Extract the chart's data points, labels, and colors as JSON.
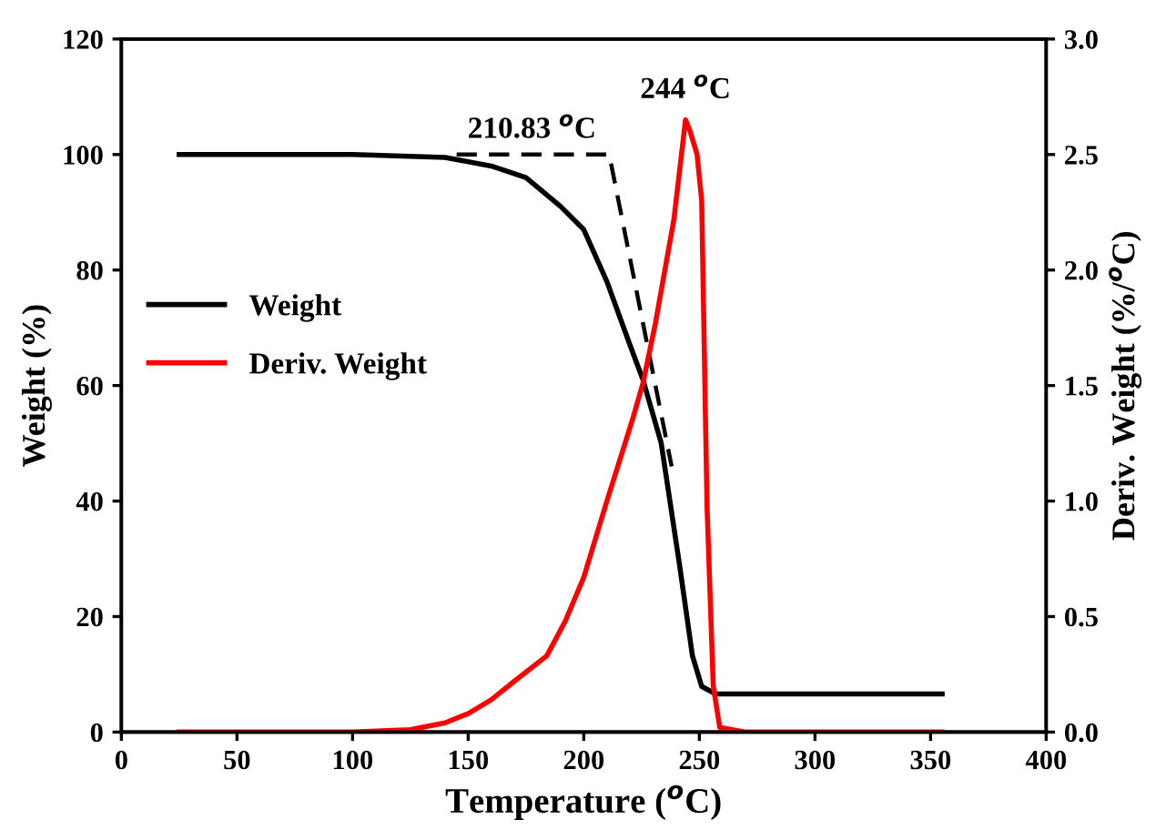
{
  "chart_data": {
    "type": "line",
    "xlabel": "Temperature ($^{o}$C)",
    "ylabel": "Weight (%)",
    "y2label": "Deriv. Weight (%/$^{o}$C)",
    "xlim": [
      0,
      400
    ],
    "xticks": [
      0,
      50,
      100,
      150,
      200,
      250,
      300,
      350,
      400
    ],
    "ylim": [
      0,
      120
    ],
    "yticks": [
      0,
      20,
      40,
      60,
      80,
      100,
      120
    ],
    "y2lim": [
      0,
      3.0
    ],
    "y2ticks": [
      {
        "value": 0,
        "label": "0.0"
      },
      {
        "value": 0.5,
        "label": "0.5"
      },
      {
        "value": 1,
        "label": "1.0"
      },
      {
        "value": 1.5,
        "label": "1.5"
      },
      {
        "value": 2,
        "label": "2.0"
      },
      {
        "value": 2.5,
        "label": "2.5"
      },
      {
        "value": 3,
        "label": "3.0"
      }
    ],
    "grid": false,
    "legend": "center left",
    "marker": "none",
    "series": [
      {
        "name": "Weight",
        "color": "#000000",
        "line_style": "solid",
        "x": [
          25,
          100,
          140,
          160,
          175,
          190,
          200,
          210,
          220,
          225.6,
          233.5,
          241.4,
          247,
          251,
          257,
          300,
          355
        ],
        "values": [
          100,
          100,
          99.5,
          98,
          96,
          91,
          87,
          78,
          67,
          61,
          50,
          29,
          13.2,
          7.9,
          6.6,
          6.6,
          6.6
        ]
      },
      {
        "name": "Deriv. Weight",
        "color": "#ff0000",
        "axis": "y2",
        "line_style": "solid",
        "x": [
          25,
          100,
          125,
          140,
          150,
          160,
          170,
          184,
          192,
          200,
          210,
          221,
          225.6,
          231,
          239,
          244,
          246,
          249,
          251,
          253.3,
          256,
          258.8,
          270,
          355
        ],
        "values": [
          0,
          0,
          0.01,
          0.04,
          0.08,
          0.14,
          0.22,
          0.33,
          0.48,
          0.67,
          1.0,
          1.35,
          1.51,
          1.77,
          2.22,
          2.65,
          2.6,
          2.5,
          2.3,
          0.98,
          0.2,
          0.02,
          0,
          0
        ]
      },
      {
        "color": "#000000",
        "line_style": "dashed",
        "x": [
          145,
          211,
          238
        ],
        "values": [
          100,
          100,
          46
        ]
      }
    ],
    "annotations": [
      {
        "text": "210.83 $^{o}$C",
        "x": 210.83,
        "y": 100
      },
      {
        "text": "244 $^{o}$C",
        "x": 244,
        "y": 106
      }
    ]
  }
}
